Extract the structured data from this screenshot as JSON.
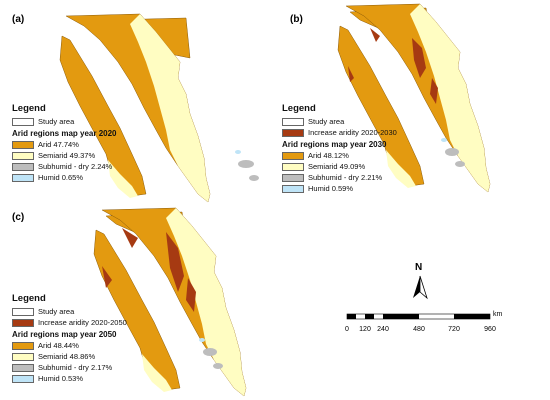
{
  "panels": {
    "a": {
      "letter": "(a)",
      "legend_title": "Legend",
      "items_top": [
        {
          "label": "Study area",
          "color": "#ffffff"
        }
      ],
      "section_title": "Arid regions map year 2020",
      "items": [
        {
          "label": "Arid 47.74%",
          "color": "#E39A10"
        },
        {
          "label": "Semiarid 49.37%",
          "color": "#FFFDC2"
        },
        {
          "label": "Subhumid - dry 2.24%",
          "color": "#BDBDBD"
        },
        {
          "label": "Humid 0.65%",
          "color": "#BFE4F7"
        }
      ]
    },
    "b": {
      "letter": "(b)",
      "legend_title": "Legend",
      "items_top": [
        {
          "label": "Study area",
          "color": "#ffffff"
        },
        {
          "label": "Increase aridity 2020-2030",
          "color": "#A63A12"
        }
      ],
      "section_title": "Arid regions map year 2030",
      "items": [
        {
          "label": "Arid 48.12%",
          "color": "#E39A10"
        },
        {
          "label": "Semiarid 49.09%",
          "color": "#FFFDC2"
        },
        {
          "label": "Subhumid - dry 2.21%",
          "color": "#BDBDBD"
        },
        {
          "label": "Humid 0.59%",
          "color": "#BFE4F7"
        }
      ]
    },
    "c": {
      "letter": "(c)",
      "legend_title": "Legend",
      "items_top": [
        {
          "label": "Study area",
          "color": "#ffffff"
        },
        {
          "label": "Increase aridity 2020-2050",
          "color": "#A63A12"
        }
      ],
      "section_title": "Arid regions map year 2050",
      "items": [
        {
          "label": "Arid 48.44%",
          "color": "#E39A10"
        },
        {
          "label": "Semiarid 48.86%",
          "color": "#FFFDC2"
        },
        {
          "label": "Subhumid - dry 2.17%",
          "color": "#BDBDBD"
        },
        {
          "label": "Humid 0.53%",
          "color": "#BFE4F7"
        }
      ]
    }
  },
  "north_arrow": {
    "label": "N",
    "icon": "north-arrow-icon"
  },
  "scale": {
    "unit": "km",
    "ticks": [
      "0",
      "120",
      "240",
      "480",
      "720",
      "960"
    ]
  },
  "colors": {
    "arid": "#E39A10",
    "semiarid": "#FFFDC2",
    "subhumid": "#BDBDBD",
    "humid": "#BFE4F7",
    "increase": "#A63A12"
  }
}
